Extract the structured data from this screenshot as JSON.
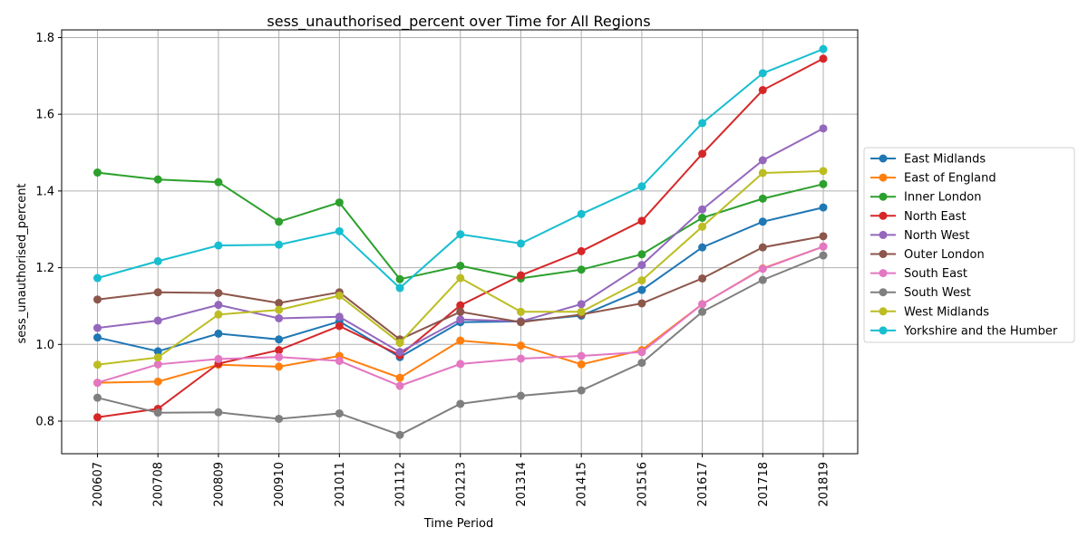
{
  "chart_data": {
    "type": "line",
    "title": "sess_unauthorised_percent over Time for All Regions",
    "xlabel": "Time Period",
    "ylabel": "sess_unauthorised_percent",
    "categories": [
      "200607",
      "200708",
      "200809",
      "200910",
      "201011",
      "201112",
      "201213",
      "201314",
      "201415",
      "201516",
      "201617",
      "201718",
      "201819"
    ],
    "ylim": [
      0.715,
      1.82
    ],
    "yticks": [
      0.8,
      1.0,
      1.2,
      1.4,
      1.6,
      1.8
    ],
    "ytick_labels": [
      "0.8",
      "1.0",
      "1.2",
      "1.4",
      "1.6",
      "1.8"
    ],
    "grid": true,
    "legend_position": "outside-right",
    "series": [
      {
        "name": "East Midlands",
        "color": "#1f77b4",
        "values": [
          1.018,
          0.982,
          1.028,
          1.013,
          1.06,
          0.967,
          1.058,
          1.06,
          1.075,
          1.142,
          1.253,
          1.32,
          1.357
        ]
      },
      {
        "name": "East of England",
        "color": "#ff7f0e",
        "values": [
          0.9,
          0.903,
          0.947,
          0.942,
          0.97,
          0.913,
          1.01,
          0.997,
          0.948,
          0.985,
          1.105,
          1.198,
          1.255
        ]
      },
      {
        "name": "Inner London",
        "color": "#2ca02c",
        "values": [
          1.448,
          1.43,
          1.423,
          1.32,
          1.37,
          1.17,
          1.205,
          1.172,
          1.195,
          1.235,
          1.33,
          1.38,
          1.418
        ]
      },
      {
        "name": "North East",
        "color": "#d62728",
        "values": [
          0.81,
          0.832,
          0.95,
          0.985,
          1.048,
          0.972,
          1.102,
          1.18,
          1.243,
          1.322,
          1.497,
          1.663,
          1.745
        ]
      },
      {
        "name": "North West",
        "color": "#9467bd",
        "values": [
          1.043,
          1.062,
          1.103,
          1.068,
          1.072,
          0.98,
          1.065,
          1.06,
          1.105,
          1.207,
          1.352,
          1.48,
          1.563
        ]
      },
      {
        "name": "Outer London",
        "color": "#8c564b",
        "values": [
          1.117,
          1.136,
          1.134,
          1.108,
          1.136,
          1.013,
          1.085,
          1.058,
          1.078,
          1.107,
          1.172,
          1.253,
          1.282
        ]
      },
      {
        "name": "South East",
        "color": "#e377c2",
        "values": [
          0.9,
          0.948,
          0.962,
          0.967,
          0.957,
          0.892,
          0.949,
          0.963,
          0.97,
          0.98,
          1.105,
          1.197,
          1.255
        ]
      },
      {
        "name": "South West",
        "color": "#7f7f7f",
        "values": [
          0.861,
          0.822,
          0.823,
          0.806,
          0.82,
          0.764,
          0.845,
          0.866,
          0.88,
          0.952,
          1.085,
          1.168,
          1.232
        ]
      },
      {
        "name": "West Midlands",
        "color": "#bcbd22",
        "values": [
          0.947,
          0.966,
          1.078,
          1.09,
          1.127,
          1.004,
          1.173,
          1.085,
          1.085,
          1.167,
          1.307,
          1.447,
          1.452
        ]
      },
      {
        "name": "Yorkshire and the Humber",
        "color": "#17becf",
        "values": [
          1.173,
          1.217,
          1.258,
          1.26,
          1.295,
          1.147,
          1.287,
          1.263,
          1.34,
          1.412,
          1.577,
          1.707,
          1.77
        ]
      }
    ]
  }
}
